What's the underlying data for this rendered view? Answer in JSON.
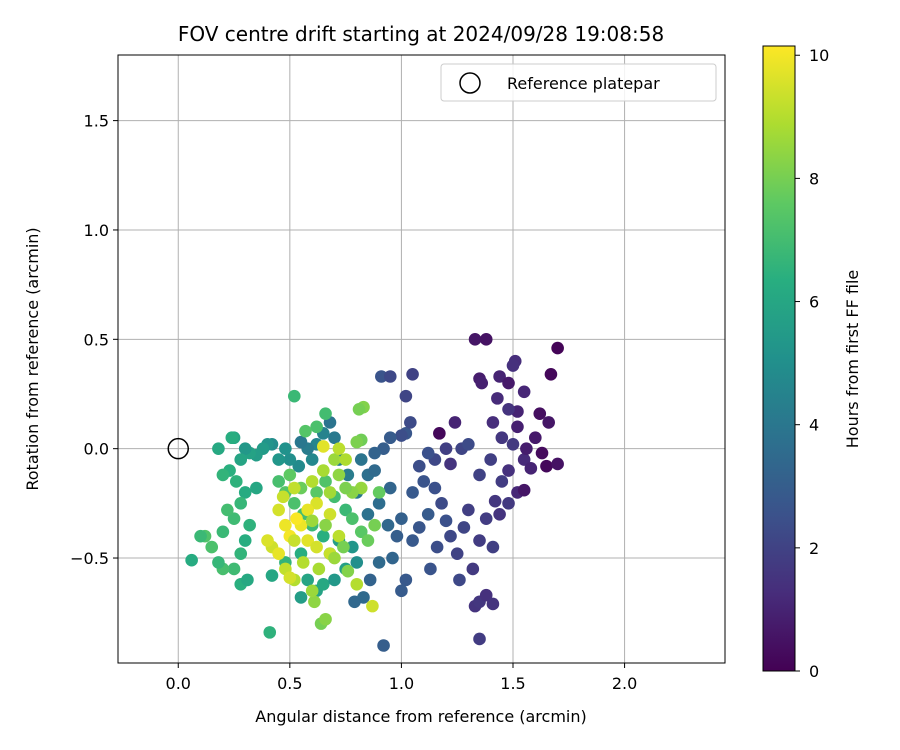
{
  "chart_data": {
    "type": "scatter",
    "title": "FOV centre drift starting at 2024/09/28 19:08:58",
    "xlabel": "Angular distance from reference (arcmin)",
    "ylabel": "Rotation from reference (arcmin)",
    "xlim": [
      -0.27,
      2.45
    ],
    "ylim": [
      -0.98,
      1.8
    ],
    "xticks": [
      0.0,
      0.5,
      1.0,
      1.5,
      2.0
    ],
    "xtick_labels": [
      "0.0",
      "0.5",
      "1.0",
      "1.5",
      "2.0"
    ],
    "yticks": [
      -0.5,
      0.0,
      0.5,
      1.0,
      1.5
    ],
    "ytick_labels": [
      "−0.5",
      "0.0",
      "0.5",
      "1.0",
      "1.5"
    ],
    "grid": true,
    "legend": {
      "position": "top-right",
      "entries": [
        "Reference platepar"
      ]
    },
    "reference_point": {
      "name": "Reference platepar",
      "x": 0.0,
      "y": 0.0
    },
    "colorbar": {
      "label": "Hours from first FF file",
      "range": [
        0,
        10.15
      ],
      "ticks": [
        0,
        2,
        4,
        6,
        8,
        10
      ],
      "tick_labels": [
        "0",
        "2",
        "4",
        "6",
        "8",
        "10"
      ],
      "colormap": "viridis"
    },
    "points": [
      [
        1.33,
        0.5,
        0.6
      ],
      [
        1.38,
        0.5,
        0.5
      ],
      [
        1.7,
        0.46,
        0.1
      ],
      [
        1.51,
        0.4,
        1.3
      ],
      [
        1.5,
        0.38,
        1.4
      ],
      [
        1.35,
        0.32,
        0.8
      ],
      [
        1.36,
        0.3,
        0.9
      ],
      [
        1.44,
        0.33,
        1.0
      ],
      [
        1.48,
        0.3,
        0.7
      ],
      [
        1.67,
        0.34,
        0.2
      ],
      [
        1.55,
        0.26,
        1.1
      ],
      [
        1.43,
        0.23,
        1.2
      ],
      [
        1.52,
        0.17,
        1.0
      ],
      [
        1.62,
        0.16,
        0.4
      ],
      [
        1.48,
        0.18,
        1.5
      ],
      [
        1.66,
        0.12,
        0.6
      ],
      [
        1.41,
        0.12,
        1.3
      ],
      [
        1.45,
        0.05,
        1.6
      ],
      [
        1.52,
        0.1,
        0.9
      ],
      [
        1.6,
        0.05,
        0.7
      ],
      [
        1.5,
        0.02,
        1.7
      ],
      [
        1.55,
        -0.05,
        1.2
      ],
      [
        1.63,
        -0.02,
        0.3
      ],
      [
        1.56,
        0.0,
        0.8
      ],
      [
        1.65,
        -0.08,
        0.2
      ],
      [
        1.7,
        -0.07,
        0.5
      ],
      [
        1.58,
        -0.09,
        1.0
      ],
      [
        1.48,
        -0.1,
        1.4
      ],
      [
        1.52,
        -0.2,
        1.1
      ],
      [
        1.55,
        -0.19,
        0.6
      ],
      [
        1.45,
        -0.15,
        1.8
      ],
      [
        1.4,
        -0.05,
        1.9
      ],
      [
        1.35,
        -0.12,
        2.0
      ],
      [
        1.42,
        -0.24,
        1.6
      ],
      [
        1.38,
        -0.32,
        1.8
      ],
      [
        1.44,
        -0.3,
        1.5
      ],
      [
        1.48,
        -0.25,
        1.7
      ],
      [
        1.3,
        -0.28,
        1.9
      ],
      [
        1.28,
        -0.36,
        2.1
      ],
      [
        1.25,
        -0.48,
        2.0
      ],
      [
        1.35,
        -0.42,
        1.8
      ],
      [
        1.32,
        -0.55,
        1.7
      ],
      [
        1.41,
        -0.45,
        1.9
      ],
      [
        1.26,
        -0.6,
        2.2
      ],
      [
        1.33,
        -0.72,
        1.5
      ],
      [
        1.35,
        -0.7,
        1.6
      ],
      [
        1.38,
        -0.67,
        1.4
      ],
      [
        1.41,
        -0.71,
        1.5
      ],
      [
        1.35,
        -0.87,
        1.8
      ],
      [
        1.17,
        0.07,
        0.2
      ],
      [
        1.24,
        0.12,
        1.0
      ],
      [
        1.2,
        0.0,
        1.9
      ],
      [
        1.27,
        0.0,
        2.1
      ],
      [
        1.22,
        -0.07,
        1.5
      ],
      [
        1.3,
        0.02,
        2.3
      ],
      [
        1.15,
        -0.05,
        2.2
      ],
      [
        1.12,
        -0.02,
        2.5
      ],
      [
        1.08,
        -0.08,
        2.4
      ],
      [
        1.02,
        0.07,
        2.7
      ],
      [
        1.04,
        0.12,
        2.3
      ],
      [
        0.91,
        0.33,
        2.6
      ],
      [
        0.95,
        0.33,
        2.2
      ],
      [
        1.05,
        0.34,
        2.0
      ],
      [
        1.02,
        0.24,
        2.1
      ],
      [
        1.0,
        0.06,
        2.4
      ],
      [
        0.95,
        0.05,
        2.9
      ],
      [
        0.92,
        0.0,
        3.0
      ],
      [
        0.88,
        -0.02,
        3.2
      ],
      [
        1.1,
        -0.15,
        2.6
      ],
      [
        1.05,
        -0.2,
        2.8
      ],
      [
        1.15,
        -0.18,
        2.5
      ],
      [
        1.18,
        -0.25,
        2.3
      ],
      [
        1.12,
        -0.3,
        2.9
      ],
      [
        1.08,
        -0.36,
        2.7
      ],
      [
        1.2,
        -0.33,
        2.5
      ],
      [
        1.22,
        -0.4,
        2.2
      ],
      [
        1.16,
        -0.45,
        2.4
      ],
      [
        1.13,
        -0.55,
        2.6
      ],
      [
        1.05,
        -0.42,
        2.8
      ],
      [
        1.0,
        -0.32,
        3.1
      ],
      [
        0.98,
        -0.4,
        3.0
      ],
      [
        0.96,
        -0.5,
        3.3
      ],
      [
        1.02,
        -0.6,
        2.8
      ],
      [
        1.0,
        -0.65,
        2.9
      ],
      [
        0.9,
        -0.52,
        3.5
      ],
      [
        0.94,
        -0.35,
        3.4
      ],
      [
        0.9,
        -0.25,
        3.6
      ],
      [
        0.95,
        -0.18,
        3.3
      ],
      [
        0.85,
        -0.12,
        3.7
      ],
      [
        0.82,
        -0.05,
        3.9
      ],
      [
        0.88,
        -0.1,
        3.5
      ],
      [
        0.86,
        -0.6,
        3.2
      ],
      [
        0.83,
        -0.68,
        3.5
      ],
      [
        0.79,
        -0.7,
        3.4
      ],
      [
        0.92,
        -0.9,
        3.0
      ],
      [
        0.85,
        -0.3,
        3.8
      ],
      [
        0.8,
        -0.2,
        4.0
      ],
      [
        0.76,
        -0.12,
        4.2
      ],
      [
        0.72,
        -0.05,
        4.3
      ],
      [
        0.7,
        0.05,
        4.1
      ],
      [
        0.68,
        0.12,
        3.9
      ],
      [
        0.65,
        0.07,
        4.5
      ],
      [
        0.62,
        0.02,
        4.6
      ],
      [
        0.6,
        -0.05,
        4.7
      ],
      [
        0.58,
        0.0,
        4.2
      ],
      [
        0.55,
        0.03,
        4.0
      ],
      [
        0.54,
        -0.08,
        4.8
      ],
      [
        0.5,
        -0.05,
        5.0
      ],
      [
        0.48,
        0.0,
        5.1
      ],
      [
        0.45,
        -0.05,
        5.3
      ],
      [
        0.42,
        0.02,
        4.9
      ],
      [
        0.4,
        0.02,
        5.2
      ],
      [
        0.38,
        0.0,
        5.5
      ],
      [
        0.35,
        -0.03,
        5.6
      ],
      [
        0.32,
        -0.02,
        5.8
      ],
      [
        0.3,
        0.0,
        5.4
      ],
      [
        0.28,
        -0.05,
        5.9
      ],
      [
        0.25,
        0.05,
        6.0
      ],
      [
        0.24,
        0.05,
        6.3
      ],
      [
        0.18,
        0.0,
        6.1
      ],
      [
        0.23,
        -0.1,
        6.4
      ],
      [
        0.2,
        -0.12,
        6.6
      ],
      [
        0.26,
        -0.15,
        6.5
      ],
      [
        0.3,
        -0.2,
        6.2
      ],
      [
        0.35,
        -0.18,
        6.0
      ],
      [
        0.28,
        -0.25,
        6.7
      ],
      [
        0.25,
        -0.32,
        6.9
      ],
      [
        0.22,
        -0.28,
        7.0
      ],
      [
        0.2,
        -0.38,
        6.8
      ],
      [
        0.32,
        -0.35,
        6.5
      ],
      [
        0.3,
        -0.42,
        6.3
      ],
      [
        0.28,
        -0.48,
        6.6
      ],
      [
        0.25,
        -0.55,
        6.9
      ],
      [
        0.2,
        -0.55,
        7.1
      ],
      [
        0.18,
        -0.52,
        6.7
      ],
      [
        0.15,
        -0.45,
        7.2
      ],
      [
        0.12,
        -0.4,
        7.3
      ],
      [
        0.1,
        -0.4,
        6.8
      ],
      [
        0.06,
        -0.51,
        6.2
      ],
      [
        0.28,
        -0.62,
        6.4
      ],
      [
        0.31,
        -0.6,
        6.1
      ],
      [
        0.42,
        -0.58,
        6.0
      ],
      [
        0.48,
        -0.52,
        6.6
      ],
      [
        0.55,
        -0.48,
        6.3
      ],
      [
        0.58,
        -0.6,
        5.9
      ],
      [
        0.55,
        -0.68,
        5.6
      ],
      [
        0.62,
        -0.65,
        5.8
      ],
      [
        0.65,
        -0.62,
        6.1
      ],
      [
        0.7,
        -0.6,
        5.4
      ],
      [
        0.75,
        -0.55,
        5.7
      ],
      [
        0.8,
        -0.52,
        5.0
      ],
      [
        0.78,
        -0.45,
        5.3
      ],
      [
        0.72,
        -0.42,
        5.6
      ],
      [
        0.68,
        -0.48,
        5.9
      ],
      [
        0.65,
        -0.4,
        6.4
      ],
      [
        0.6,
        -0.35,
        6.8
      ],
      [
        0.56,
        -0.3,
        7.0
      ],
      [
        0.52,
        -0.25,
        7.2
      ],
      [
        0.48,
        -0.2,
        7.4
      ],
      [
        0.45,
        -0.15,
        7.1
      ],
      [
        0.5,
        -0.12,
        7.6
      ],
      [
        0.55,
        -0.18,
        7.8
      ],
      [
        0.62,
        -0.2,
        7.5
      ],
      [
        0.66,
        -0.15,
        7.3
      ],
      [
        0.7,
        -0.22,
        7.0
      ],
      [
        0.75,
        -0.28,
        6.8
      ],
      [
        0.78,
        -0.32,
        7.2
      ],
      [
        0.82,
        -0.38,
        7.5
      ],
      [
        0.85,
        -0.42,
        7.8
      ],
      [
        0.88,
        -0.35,
        8.0
      ],
      [
        0.9,
        -0.2,
        7.7
      ],
      [
        0.82,
        0.04,
        7.9
      ],
      [
        0.8,
        0.03,
        8.1
      ],
      [
        0.83,
        0.19,
        8.2
      ],
      [
        0.81,
        0.18,
        8.0
      ],
      [
        0.66,
        0.16,
        7.0
      ],
      [
        0.62,
        0.1,
        7.2
      ],
      [
        0.57,
        0.08,
        7.4
      ],
      [
        0.52,
        0.24,
        6.8
      ],
      [
        0.41,
        -0.84,
        6.5
      ],
      [
        0.64,
        -0.8,
        8.0
      ],
      [
        0.66,
        -0.78,
        8.3
      ],
      [
        0.61,
        -0.7,
        8.4
      ],
      [
        0.6,
        -0.65,
        8.6
      ],
      [
        0.52,
        -0.6,
        9.0
      ],
      [
        0.48,
        -0.55,
        9.2
      ],
      [
        0.42,
        -0.45,
        9.4
      ],
      [
        0.4,
        -0.42,
        9.6
      ],
      [
        0.45,
        -0.48,
        9.8
      ],
      [
        0.5,
        -0.4,
        10.0
      ],
      [
        0.55,
        -0.35,
        9.9
      ],
      [
        0.58,
        -0.42,
        9.7
      ],
      [
        0.62,
        -0.45,
        9.5
      ],
      [
        0.68,
        -0.48,
        9.3
      ],
      [
        0.72,
        -0.4,
        9.1
      ],
      [
        0.68,
        -0.3,
        9.4
      ],
      [
        0.62,
        -0.25,
        9.6
      ],
      [
        0.58,
        -0.28,
        9.8
      ],
      [
        0.53,
        -0.32,
        10.1
      ],
      [
        0.48,
        -0.35,
        9.9
      ],
      [
        0.45,
        -0.28,
        9.5
      ],
      [
        0.47,
        -0.22,
        9.3
      ],
      [
        0.52,
        -0.18,
        9.2
      ],
      [
        0.6,
        -0.15,
        9.0
      ],
      [
        0.65,
        -0.1,
        8.8
      ],
      [
        0.7,
        -0.05,
        8.6
      ],
      [
        0.75,
        -0.05,
        8.9
      ],
      [
        0.72,
        0.0,
        9.1
      ],
      [
        0.65,
        0.01,
        9.7
      ],
      [
        0.82,
        -0.18,
        8.5
      ],
      [
        0.78,
        -0.2,
        8.3
      ],
      [
        0.75,
        -0.18,
        8.1
      ],
      [
        0.72,
        -0.12,
        8.4
      ],
      [
        0.68,
        -0.2,
        8.7
      ],
      [
        0.56,
        -0.52,
        9.0
      ],
      [
        0.5,
        -0.59,
        9.5
      ],
      [
        0.52,
        -0.42,
        9.3
      ],
      [
        0.63,
        -0.55,
        8.8
      ],
      [
        0.7,
        -0.5,
        8.6
      ],
      [
        0.8,
        -0.62,
        9.0
      ],
      [
        0.87,
        -0.72,
        9.4
      ],
      [
        0.76,
        -0.56,
        8.2
      ],
      [
        0.74,
        -0.45,
        8.0
      ],
      [
        0.66,
        -0.35,
        8.3
      ],
      [
        0.6,
        -0.33,
        8.6
      ]
    ]
  }
}
